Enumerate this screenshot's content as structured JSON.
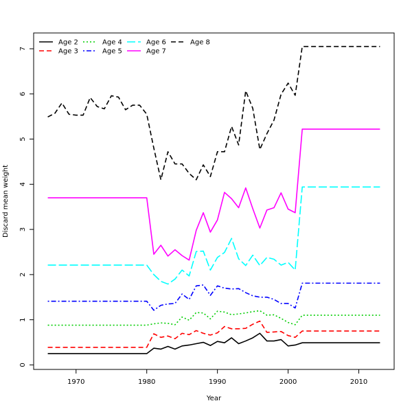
{
  "chart_data": {
    "type": "line",
    "title": "",
    "xlabel": "Year",
    "ylabel": "Discard mean weight",
    "xlim": [
      1964,
      2015
    ],
    "ylim": [
      -0.1,
      7.35
    ],
    "xticks": [
      1970,
      1980,
      1990,
      2000,
      2010
    ],
    "yticks": [
      0,
      1,
      2,
      3,
      4,
      5,
      6,
      7
    ],
    "grid": false,
    "legend_position": "top-left",
    "x": [
      1966,
      1967,
      1968,
      1969,
      1970,
      1971,
      1972,
      1973,
      1974,
      1975,
      1976,
      1977,
      1978,
      1979,
      1980,
      1981,
      1982,
      1983,
      1984,
      1985,
      1986,
      1987,
      1988,
      1989,
      1990,
      1991,
      1992,
      1993,
      1994,
      1995,
      1996,
      1997,
      1998,
      1999,
      2000,
      2001,
      2002,
      2003,
      2004,
      2005,
      2006,
      2007,
      2008,
      2009,
      2010,
      2011,
      2012,
      2013
    ],
    "series": [
      {
        "name": "Age 2",
        "color": "#000000",
        "dash": "solid",
        "values": [
          0.25,
          0.25,
          0.25,
          0.25,
          0.25,
          0.25,
          0.25,
          0.25,
          0.25,
          0.25,
          0.25,
          0.25,
          0.25,
          0.25,
          0.25,
          0.37,
          0.35,
          0.41,
          0.35,
          0.42,
          0.44,
          0.47,
          0.5,
          0.43,
          0.52,
          0.49,
          0.6,
          0.47,
          0.53,
          0.6,
          0.7,
          0.53,
          0.53,
          0.56,
          0.42,
          0.44,
          0.49,
          0.49,
          0.49,
          0.49,
          0.49,
          0.49,
          0.49,
          0.49,
          0.49,
          0.49,
          0.49,
          0.49
        ]
      },
      {
        "name": "Age 3",
        "color": "#ff0000",
        "dash": "dashed",
        "values": [
          0.39,
          0.39,
          0.39,
          0.39,
          0.39,
          0.39,
          0.39,
          0.39,
          0.39,
          0.39,
          0.39,
          0.39,
          0.39,
          0.39,
          0.39,
          0.69,
          0.61,
          0.64,
          0.58,
          0.7,
          0.67,
          0.76,
          0.7,
          0.66,
          0.71,
          0.85,
          0.8,
          0.8,
          0.81,
          0.9,
          0.97,
          0.72,
          0.73,
          0.74,
          0.65,
          0.61,
          0.75,
          0.75,
          0.75,
          0.75,
          0.75,
          0.75,
          0.75,
          0.75,
          0.75,
          0.75,
          0.75,
          0.75
        ]
      },
      {
        "name": "Age 4",
        "color": "#00cd00",
        "dash": "dotted",
        "values": [
          0.88,
          0.88,
          0.88,
          0.88,
          0.88,
          0.88,
          0.88,
          0.88,
          0.88,
          0.88,
          0.88,
          0.88,
          0.88,
          0.88,
          0.88,
          0.91,
          0.93,
          0.92,
          0.89,
          1.06,
          0.99,
          1.16,
          1.15,
          1.02,
          1.19,
          1.17,
          1.11,
          1.13,
          1.15,
          1.18,
          1.2,
          1.1,
          1.11,
          1.03,
          0.94,
          0.89,
          1.1,
          1.1,
          1.1,
          1.1,
          1.1,
          1.1,
          1.1,
          1.1,
          1.1,
          1.1,
          1.1,
          1.1
        ]
      },
      {
        "name": "Age 5",
        "color": "#0000ff",
        "dash": "dotdash",
        "values": [
          1.41,
          1.41,
          1.41,
          1.41,
          1.41,
          1.41,
          1.41,
          1.41,
          1.41,
          1.41,
          1.41,
          1.41,
          1.41,
          1.41,
          1.41,
          1.21,
          1.32,
          1.35,
          1.36,
          1.57,
          1.45,
          1.75,
          1.77,
          1.54,
          1.75,
          1.7,
          1.68,
          1.69,
          1.6,
          1.53,
          1.5,
          1.5,
          1.45,
          1.36,
          1.36,
          1.26,
          1.81,
          1.81,
          1.81,
          1.81,
          1.81,
          1.81,
          1.81,
          1.81,
          1.81,
          1.81,
          1.81,
          1.81
        ]
      },
      {
        "name": "Age 6",
        "color": "#00ffff",
        "dash": "longdash",
        "values": [
          2.21,
          2.21,
          2.21,
          2.21,
          2.21,
          2.21,
          2.21,
          2.21,
          2.21,
          2.21,
          2.21,
          2.21,
          2.21,
          2.21,
          2.21,
          2.0,
          1.85,
          1.79,
          1.9,
          2.1,
          1.97,
          2.51,
          2.52,
          2.1,
          2.38,
          2.49,
          2.8,
          2.35,
          2.2,
          2.43,
          2.2,
          2.38,
          2.34,
          2.21,
          2.27,
          2.1,
          3.94,
          3.94,
          3.94,
          3.94,
          3.94,
          3.94,
          3.94,
          3.94,
          3.94,
          3.94,
          3.94,
          3.94
        ]
      },
      {
        "name": "Age 7",
        "color": "#ff00ff",
        "dash": "solid",
        "values": [
          3.7,
          3.7,
          3.7,
          3.7,
          3.7,
          3.7,
          3.7,
          3.7,
          3.7,
          3.7,
          3.7,
          3.7,
          3.7,
          3.7,
          3.7,
          2.45,
          2.65,
          2.41,
          2.55,
          2.42,
          2.32,
          2.98,
          3.37,
          2.94,
          3.21,
          3.82,
          3.68,
          3.48,
          3.92,
          3.46,
          3.03,
          3.43,
          3.48,
          3.81,
          3.45,
          3.37,
          5.22,
          5.22,
          5.22,
          5.22,
          5.22,
          5.22,
          5.22,
          5.22,
          5.22,
          5.22,
          5.22,
          5.22
        ]
      },
      {
        "name": "Age 8",
        "color": "#000000",
        "dash": "dashed",
        "values": [
          5.49,
          5.57,
          5.8,
          5.55,
          5.53,
          5.53,
          5.92,
          5.72,
          5.67,
          5.96,
          5.93,
          5.65,
          5.75,
          5.75,
          5.55,
          4.8,
          4.1,
          4.72,
          4.45,
          4.45,
          4.24,
          4.1,
          4.43,
          4.17,
          4.72,
          4.72,
          5.28,
          4.87,
          6.07,
          5.68,
          4.77,
          5.12,
          5.42,
          5.99,
          6.24,
          5.97,
          7.05,
          7.05,
          7.05,
          7.05,
          7.05,
          7.05,
          7.05,
          7.05,
          7.05,
          7.05,
          7.05,
          7.05
        ]
      }
    ]
  }
}
